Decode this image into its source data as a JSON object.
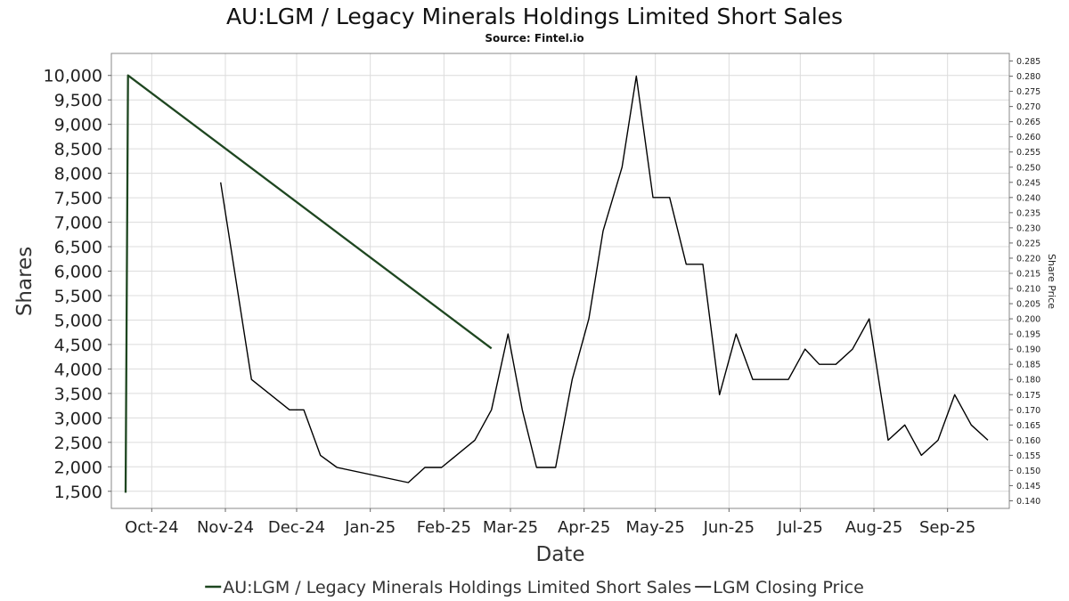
{
  "chart_data": {
    "type": "line",
    "title": "AU:LGM / Legacy Minerals Holdings Limited Short Sales",
    "subtitle": "Source: Fintel.io",
    "xlabel": "Date",
    "ylabel": "Shares",
    "ylabel_right": "Share Price",
    "x_ticks": [
      "Oct-24",
      "Nov-24",
      "Dec-24",
      "Jan-25",
      "Feb-25",
      "Mar-25",
      "Apr-25",
      "May-25",
      "Jun-25",
      "Jul-25",
      "Aug-25",
      "Sep-25"
    ],
    "y_left_ticks": [
      1500,
      2000,
      2500,
      3000,
      3500,
      4000,
      4500,
      5000,
      5500,
      6000,
      6500,
      7000,
      7500,
      8000,
      8500,
      9000,
      9500,
      10000
    ],
    "y_left_ticks_text": [
      "1,500",
      "2,000",
      "2,500",
      "3,000",
      "3,500",
      "4,000",
      "4,500",
      "5,000",
      "5,500",
      "6,000",
      "6,500",
      "7,000",
      "7,500",
      "8,000",
      "8,500",
      "9,000",
      "9,500",
      "10,000"
    ],
    "y_right_ticks": [
      "0.140",
      "0.145",
      "0.150",
      "0.155",
      "0.160",
      "0.165",
      "0.170",
      "0.175",
      "0.180",
      "0.185",
      "0.190",
      "0.195",
      "0.200",
      "0.205",
      "0.210",
      "0.215",
      "0.220",
      "0.225",
      "0.230",
      "0.235",
      "0.240",
      "0.245",
      "0.250",
      "0.255",
      "0.260",
      "0.265",
      "0.270",
      "0.275",
      "0.280",
      "0.285"
    ],
    "ylim_left": [
      1150,
      10450
    ],
    "ylim_right": [
      0.1375,
      0.2875
    ],
    "grid": true,
    "legend_placement": "bottom",
    "series": [
      {
        "name": "AU:LGM / Legacy Minerals Holdings Limited Short Sales",
        "axis": "left",
        "color": "#1e4620",
        "points": [
          [
            "2024-09-20",
            1470
          ],
          [
            "2024-09-21",
            10000
          ],
          [
            "2025-02-21",
            4420
          ]
        ]
      },
      {
        "name": "LGM Closing Price",
        "axis": "right",
        "color": "#000000",
        "points": [
          [
            "2024-10-30",
            0.245
          ],
          [
            "2024-11-12",
            0.18
          ],
          [
            "2024-11-28",
            0.17
          ],
          [
            "2024-12-04",
            0.17
          ],
          [
            "2024-12-11",
            0.155
          ],
          [
            "2024-12-18",
            0.151
          ],
          [
            "2025-01-17",
            0.146
          ],
          [
            "2025-01-24",
            0.151
          ],
          [
            "2025-01-31",
            0.151
          ],
          [
            "2025-02-14",
            0.16
          ],
          [
            "2025-02-21",
            0.17
          ],
          [
            "2025-02-28",
            0.195
          ],
          [
            "2025-03-06",
            0.17
          ],
          [
            "2025-03-12",
            0.151
          ],
          [
            "2025-03-20",
            0.151
          ],
          [
            "2025-03-27",
            0.18
          ],
          [
            "2025-04-03",
            0.2
          ],
          [
            "2025-04-09",
            0.229
          ],
          [
            "2025-04-17",
            0.25
          ],
          [
            "2025-04-23",
            0.28
          ],
          [
            "2025-04-30",
            0.24
          ],
          [
            "2025-05-07",
            0.24
          ],
          [
            "2025-05-14",
            0.218
          ],
          [
            "2025-05-21",
            0.218
          ],
          [
            "2025-05-28",
            0.175
          ],
          [
            "2025-06-04",
            0.195
          ],
          [
            "2025-06-11",
            0.18
          ],
          [
            "2025-06-26",
            0.18
          ],
          [
            "2025-07-03",
            0.19
          ],
          [
            "2025-07-09",
            0.185
          ],
          [
            "2025-07-16",
            0.185
          ],
          [
            "2025-07-23",
            0.19
          ],
          [
            "2025-07-30",
            0.2
          ],
          [
            "2025-08-07",
            0.16
          ],
          [
            "2025-08-14",
            0.165
          ],
          [
            "2025-08-21",
            0.155
          ],
          [
            "2025-08-28",
            0.16
          ],
          [
            "2025-09-04",
            0.175
          ],
          [
            "2025-09-11",
            0.165
          ],
          [
            "2025-09-18",
            0.16
          ]
        ]
      }
    ]
  }
}
